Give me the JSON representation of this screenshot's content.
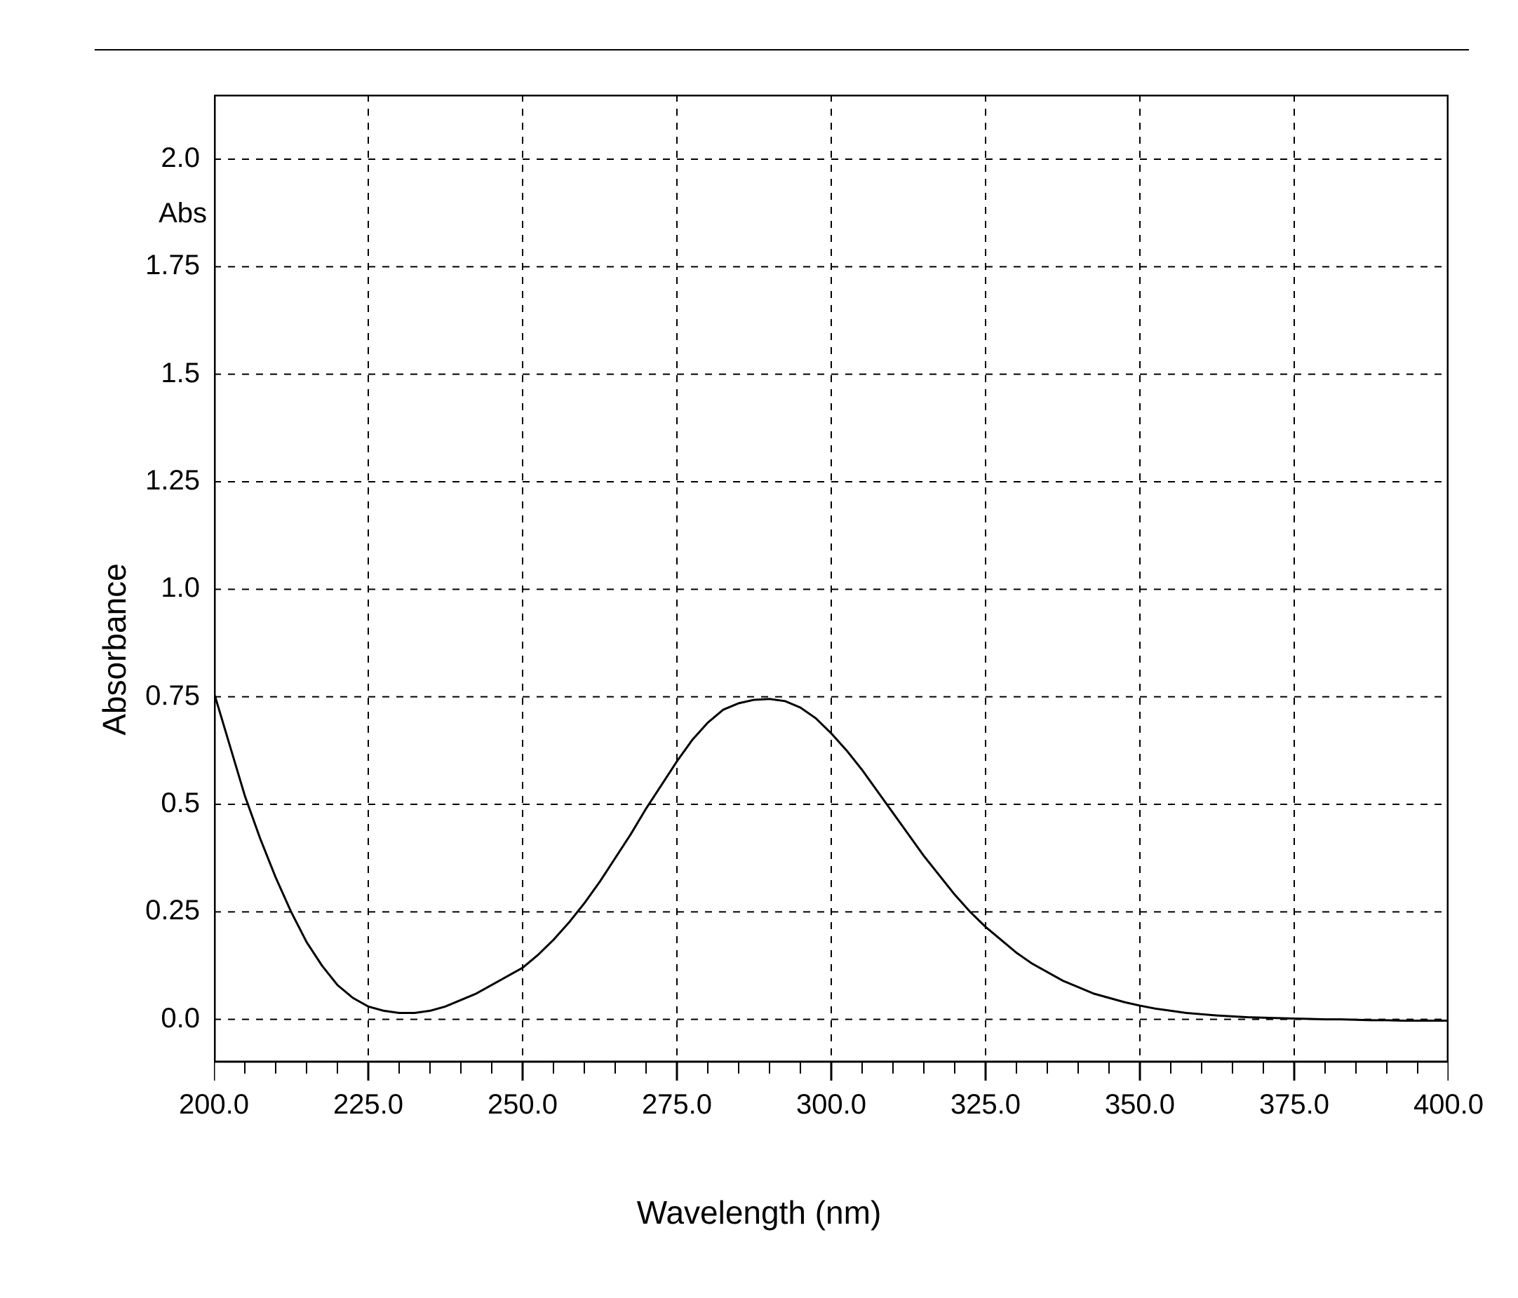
{
  "chart": {
    "type": "line",
    "xlabel": "Wavelength (nm)",
    "ylabel": "Absorbance",
    "inset_label": "Abs",
    "xlim": [
      200.0,
      400.0
    ],
    "ylim": [
      -0.1,
      2.15
    ],
    "x_ticks": [
      200.0,
      225.0,
      250.0,
      275.0,
      300.0,
      325.0,
      350.0,
      375.0,
      400.0
    ],
    "x_tick_labels": [
      "200.0",
      "225.0",
      "250.0",
      "275.0",
      "300.0",
      "325.0",
      "350.0",
      "375.0",
      "400.0"
    ],
    "y_ticks": [
      0.0,
      0.25,
      0.5,
      0.75,
      1.0,
      1.25,
      1.5,
      1.75,
      2.0
    ],
    "y_tick_labels": [
      "0.0",
      "0.25",
      "0.5",
      "0.75",
      "1.0",
      "1.25",
      "1.5",
      "1.75",
      "2.0"
    ],
    "x_minor_step": 5.0,
    "grid_color": "#000000",
    "axis_color": "#000000",
    "line_color": "#000000",
    "background_color": "#ffffff",
    "line_width": 3,
    "axis_width": 3,
    "grid_dash": "10,10",
    "label_fontsize": 46,
    "tick_fontsize": 40,
    "series": [
      {
        "x": 200.0,
        "y": 0.76
      },
      {
        "x": 202.5,
        "y": 0.64
      },
      {
        "x": 205.0,
        "y": 0.52
      },
      {
        "x": 207.5,
        "y": 0.42
      },
      {
        "x": 210.0,
        "y": 0.33
      },
      {
        "x": 212.5,
        "y": 0.25
      },
      {
        "x": 215.0,
        "y": 0.18
      },
      {
        "x": 217.5,
        "y": 0.125
      },
      {
        "x": 220.0,
        "y": 0.08
      },
      {
        "x": 222.5,
        "y": 0.05
      },
      {
        "x": 225.0,
        "y": 0.03
      },
      {
        "x": 227.5,
        "y": 0.02
      },
      {
        "x": 230.0,
        "y": 0.015
      },
      {
        "x": 232.5,
        "y": 0.015
      },
      {
        "x": 235.0,
        "y": 0.02
      },
      {
        "x": 237.5,
        "y": 0.03
      },
      {
        "x": 240.0,
        "y": 0.045
      },
      {
        "x": 242.5,
        "y": 0.06
      },
      {
        "x": 245.0,
        "y": 0.08
      },
      {
        "x": 247.5,
        "y": 0.1
      },
      {
        "x": 250.0,
        "y": 0.12
      },
      {
        "x": 252.5,
        "y": 0.15
      },
      {
        "x": 255.0,
        "y": 0.185
      },
      {
        "x": 257.5,
        "y": 0.225
      },
      {
        "x": 260.0,
        "y": 0.27
      },
      {
        "x": 262.5,
        "y": 0.32
      },
      {
        "x": 265.0,
        "y": 0.375
      },
      {
        "x": 267.5,
        "y": 0.43
      },
      {
        "x": 270.0,
        "y": 0.49
      },
      {
        "x": 272.5,
        "y": 0.545
      },
      {
        "x": 275.0,
        "y": 0.6
      },
      {
        "x": 277.5,
        "y": 0.65
      },
      {
        "x": 280.0,
        "y": 0.69
      },
      {
        "x": 282.5,
        "y": 0.72
      },
      {
        "x": 285.0,
        "y": 0.735
      },
      {
        "x": 287.5,
        "y": 0.743
      },
      {
        "x": 290.0,
        "y": 0.745
      },
      {
        "x": 292.5,
        "y": 0.74
      },
      {
        "x": 295.0,
        "y": 0.725
      },
      {
        "x": 297.5,
        "y": 0.7
      },
      {
        "x": 300.0,
        "y": 0.665
      },
      {
        "x": 302.5,
        "y": 0.625
      },
      {
        "x": 305.0,
        "y": 0.58
      },
      {
        "x": 307.5,
        "y": 0.53
      },
      {
        "x": 310.0,
        "y": 0.48
      },
      {
        "x": 312.5,
        "y": 0.43
      },
      {
        "x": 315.0,
        "y": 0.38
      },
      {
        "x": 317.5,
        "y": 0.335
      },
      {
        "x": 320.0,
        "y": 0.29
      },
      {
        "x": 322.5,
        "y": 0.25
      },
      {
        "x": 325.0,
        "y": 0.215
      },
      {
        "x": 327.5,
        "y": 0.185
      },
      {
        "x": 330.0,
        "y": 0.155
      },
      {
        "x": 332.5,
        "y": 0.13
      },
      {
        "x": 335.0,
        "y": 0.11
      },
      {
        "x": 337.5,
        "y": 0.09
      },
      {
        "x": 340.0,
        "y": 0.075
      },
      {
        "x": 342.5,
        "y": 0.06
      },
      {
        "x": 345.0,
        "y": 0.05
      },
      {
        "x": 347.5,
        "y": 0.04
      },
      {
        "x": 350.0,
        "y": 0.032
      },
      {
        "x": 352.5,
        "y": 0.025
      },
      {
        "x": 355.0,
        "y": 0.02
      },
      {
        "x": 357.5,
        "y": 0.015
      },
      {
        "x": 360.0,
        "y": 0.012
      },
      {
        "x": 362.5,
        "y": 0.009
      },
      {
        "x": 365.0,
        "y": 0.007
      },
      {
        "x": 367.5,
        "y": 0.005
      },
      {
        "x": 370.0,
        "y": 0.004
      },
      {
        "x": 372.5,
        "y": 0.003
      },
      {
        "x": 375.0,
        "y": 0.002
      },
      {
        "x": 377.5,
        "y": 0.001
      },
      {
        "x": 380.0,
        "y": 0.0
      },
      {
        "x": 382.5,
        "y": 0.0
      },
      {
        "x": 385.0,
        "y": -0.001
      },
      {
        "x": 387.5,
        "y": -0.002
      },
      {
        "x": 390.0,
        "y": -0.002
      },
      {
        "x": 392.5,
        "y": -0.003
      },
      {
        "x": 395.0,
        "y": -0.003
      },
      {
        "x": 397.5,
        "y": -0.003
      },
      {
        "x": 400.0,
        "y": -0.003
      }
    ]
  }
}
